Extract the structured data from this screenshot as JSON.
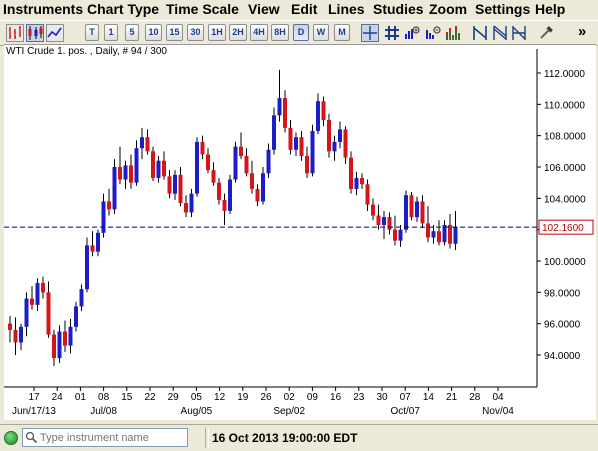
{
  "menu": [
    "Instruments",
    "Chart Type",
    "Time Scale",
    "View",
    "Edit",
    "Lines",
    "Studies",
    "Zoom",
    "Settings",
    "Help"
  ],
  "toolbar": {
    "timeframes": [
      "T",
      "1",
      "5",
      "10",
      "15",
      "30",
      "1H",
      "2H",
      "4H",
      "8H",
      "D",
      "W",
      "M"
    ],
    "active_timeframe": "D",
    "overflow_label": "»"
  },
  "chart": {
    "header": "WTI Crude 1. pos. , Daily, # 94 / 300",
    "current_price_label": "102.1600",
    "line_color": "#00007F",
    "up_color": "#1C1CC8",
    "down_color": "#D4161B",
    "price_label_color": "#C00000"
  },
  "chart_data": {
    "type": "candlestick",
    "ylim": [
      92.0,
      113.5
    ],
    "yticks": [
      94,
      96,
      98,
      100,
      102,
      104,
      106,
      108,
      110,
      112
    ],
    "ytick_labels": [
      "94.0000",
      "96.0000",
      "98.0000",
      "100.0000",
      "102.0000",
      "104.0000",
      "106.0000",
      "108.0000",
      "110.0000",
      "112.0000"
    ],
    "current_price": 102.16,
    "day_ticks": [
      "17",
      "24",
      "01",
      "08",
      "15",
      "22",
      "29",
      "05",
      "12",
      "19",
      "26",
      "02",
      "09",
      "16",
      "23",
      "30",
      "07",
      "14",
      "21",
      "28",
      "04"
    ],
    "month_labels": [
      "Jun/17/13",
      "Jul/08",
      "Aug/05",
      "Sep/02",
      "Oct/07",
      "Nov/04"
    ],
    "ohlc": [
      [
        96.0,
        96.5,
        94.8,
        95.6
      ],
      [
        95.6,
        96.4,
        94.0,
        94.8
      ],
      [
        94.8,
        96.0,
        94.3,
        95.8
      ],
      [
        95.8,
        98.0,
        95.2,
        97.6
      ],
      [
        97.6,
        98.4,
        96.9,
        97.2
      ],
      [
        97.2,
        98.9,
        96.8,
        98.6
      ],
      [
        98.6,
        99.0,
        97.6,
        98.0
      ],
      [
        98.0,
        98.7,
        95.1,
        95.3
      ],
      [
        95.3,
        95.6,
        93.3,
        93.8
      ],
      [
        93.8,
        95.9,
        93.5,
        95.5
      ],
      [
        95.5,
        96.2,
        94.2,
        94.6
      ],
      [
        94.6,
        96.3,
        94.1,
        95.8
      ],
      [
        95.8,
        97.4,
        95.5,
        97.1
      ],
      [
        97.1,
        98.5,
        96.8,
        98.2
      ],
      [
        98.2,
        101.5,
        98.0,
        101.0
      ],
      [
        101.0,
        101.9,
        100.3,
        100.6
      ],
      [
        100.6,
        102.0,
        100.3,
        101.8
      ],
      [
        101.8,
        104.3,
        101.5,
        103.8
      ],
      [
        103.8,
        104.6,
        102.9,
        103.3
      ],
      [
        103.3,
        106.5,
        103.0,
        106.0
      ],
      [
        106.0,
        107.3,
        104.9,
        105.2
      ],
      [
        105.2,
        106.4,
        104.6,
        106.1
      ],
      [
        106.1,
        106.8,
        104.6,
        105.0
      ],
      [
        105.0,
        107.7,
        104.8,
        107.2
      ],
      [
        107.2,
        108.5,
        106.5,
        107.9
      ],
      [
        107.9,
        108.4,
        106.8,
        107.0
      ],
      [
        107.0,
        107.3,
        105.1,
        105.3
      ],
      [
        105.3,
        106.7,
        105.0,
        106.4
      ],
      [
        106.4,
        107.0,
        105.2,
        105.4
      ],
      [
        105.4,
        105.8,
        104.0,
        104.3
      ],
      [
        104.3,
        105.8,
        103.9,
        105.5
      ],
      [
        105.5,
        106.0,
        103.5,
        103.7
      ],
      [
        103.7,
        104.2,
        102.8,
        103.1
      ],
      [
        103.1,
        104.6,
        102.8,
        104.3
      ],
      [
        104.3,
        107.9,
        104.1,
        107.6
      ],
      [
        107.6,
        108.0,
        106.5,
        106.8
      ],
      [
        106.8,
        107.2,
        105.6,
        105.8
      ],
      [
        105.8,
        106.3,
        104.8,
        105.0
      ],
      [
        105.0,
        105.3,
        103.6,
        103.9
      ],
      [
        103.9,
        104.3,
        102.3,
        103.2
      ],
      [
        103.2,
        105.5,
        103.0,
        105.2
      ],
      [
        105.2,
        107.6,
        105.0,
        107.3
      ],
      [
        107.3,
        108.2,
        106.5,
        106.7
      ],
      [
        106.7,
        107.2,
        105.4,
        105.6
      ],
      [
        105.6,
        106.4,
        104.3,
        104.6
      ],
      [
        104.6,
        104.9,
        103.5,
        103.8
      ],
      [
        103.8,
        106.0,
        103.6,
        105.6
      ],
      [
        105.6,
        107.5,
        105.3,
        107.1
      ],
      [
        107.1,
        109.8,
        106.8,
        109.3
      ],
      [
        109.3,
        112.2,
        108.9,
        110.4
      ],
      [
        110.4,
        110.9,
        108.2,
        108.5
      ],
      [
        108.5,
        109.0,
        106.8,
        107.1
      ],
      [
        107.1,
        108.2,
        106.7,
        107.9
      ],
      [
        107.9,
        108.3,
        106.4,
        106.7
      ],
      [
        106.7,
        107.3,
        105.3,
        105.6
      ],
      [
        105.6,
        108.7,
        105.4,
        108.3
      ],
      [
        108.3,
        110.7,
        108.1,
        110.2
      ],
      [
        110.2,
        110.5,
        108.6,
        109.0
      ],
      [
        109.0,
        109.4,
        106.6,
        107.0
      ],
      [
        107.0,
        108.0,
        106.4,
        107.6
      ],
      [
        107.6,
        108.9,
        107.2,
        108.4
      ],
      [
        108.4,
        108.6,
        106.2,
        106.6
      ],
      [
        106.6,
        107.0,
        104.3,
        104.6
      ],
      [
        104.6,
        105.7,
        104.2,
        105.3
      ],
      [
        105.3,
        105.6,
        104.6,
        104.9
      ],
      [
        104.9,
        105.2,
        103.2,
        103.6
      ],
      [
        103.6,
        104.0,
        102.6,
        102.9
      ],
      [
        102.9,
        103.6,
        102.0,
        102.3
      ],
      [
        102.3,
        103.2,
        101.4,
        102.8
      ],
      [
        102.8,
        103.1,
        101.7,
        102.0
      ],
      [
        102.0,
        102.9,
        101.0,
        101.3
      ],
      [
        101.3,
        102.3,
        100.9,
        102.0
      ],
      [
        102.0,
        104.5,
        101.8,
        104.2
      ],
      [
        104.2,
        104.4,
        102.6,
        102.8
      ],
      [
        102.8,
        104.1,
        102.5,
        103.8
      ],
      [
        103.8,
        104.2,
        102.1,
        102.4
      ],
      [
        102.4,
        103.5,
        101.2,
        101.5
      ],
      [
        101.5,
        102.3,
        101.1,
        101.9
      ],
      [
        101.9,
        102.6,
        101.0,
        101.2
      ],
      [
        101.2,
        102.6,
        101.0,
        102.3
      ],
      [
        102.3,
        103.0,
        100.8,
        101.1
      ],
      [
        101.1,
        103.2,
        100.7,
        102.2
      ]
    ]
  },
  "status": {
    "search_placeholder": "Type instrument name",
    "datetime": "16 Oct 2013 19:00:00 EDT"
  }
}
